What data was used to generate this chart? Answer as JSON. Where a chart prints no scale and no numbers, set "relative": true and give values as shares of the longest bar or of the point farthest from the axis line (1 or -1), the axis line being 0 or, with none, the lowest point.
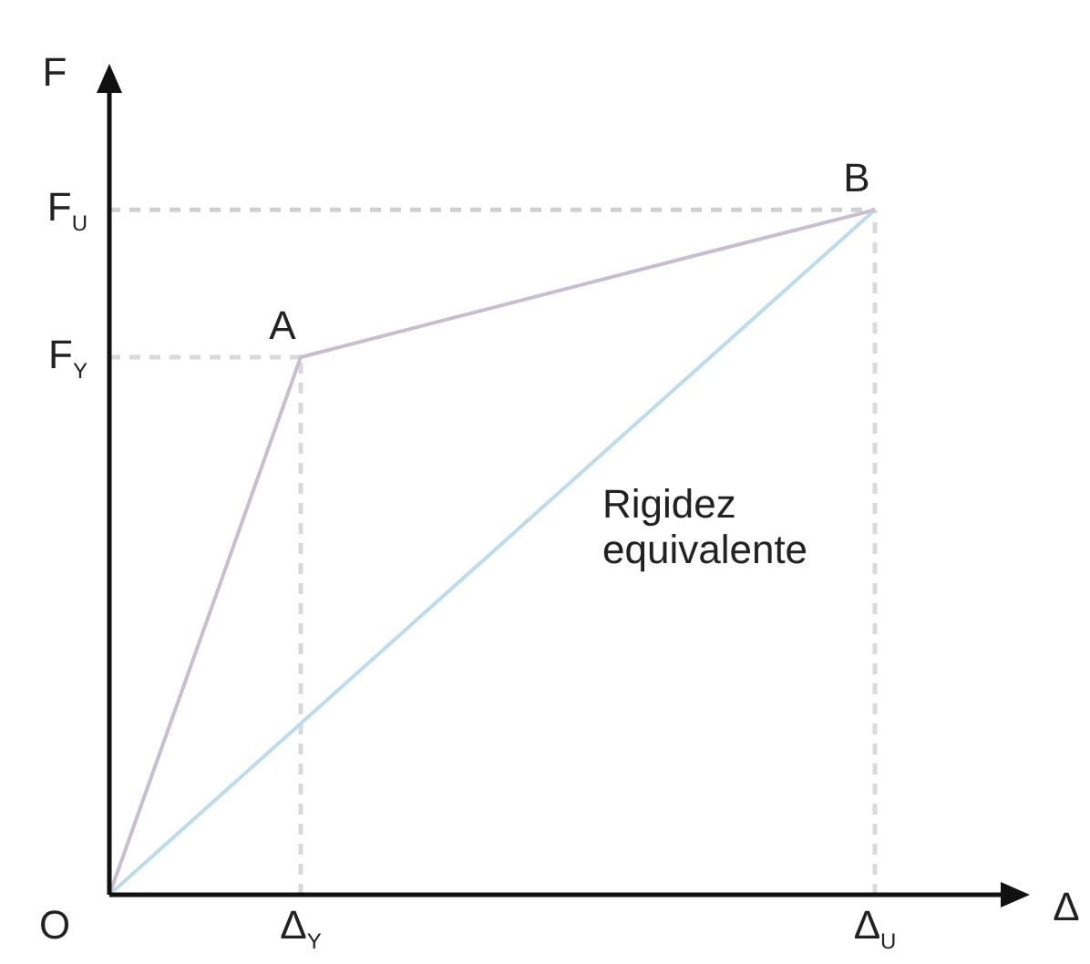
{
  "chart_data": {
    "type": "line",
    "relative": true,
    "xlabel": "Δ",
    "ylabel": "F",
    "categories": [
      null,
      "Δ$_{Y}$",
      null,
      null,
      "Δ$_{U}$"
    ],
    "series": [
      {
        "color": "#c9bdd0",
        "values": [
          0,
          0.785,
          0.857,
          0.929,
          1
        ]
      },
      {
        "name": "Rigidez equivalente",
        "color": "#bcdcec",
        "values": [
          0,
          0.25,
          0.5,
          0.75,
          1
        ]
      }
    ],
    "ref_lines": [
      {
        "axis": "y",
        "value": 0.785,
        "label": "F$_{Y}$",
        "color": "#d9d9d9",
        "line_style": "dashed"
      },
      {
        "axis": "y",
        "value": 1,
        "label": "F$_{U}$",
        "color": "#d0d0d0",
        "line_style": "dashed"
      },
      {
        "axis": "x",
        "value": "Δ$_{Y}$",
        "color": "#d9d9d9",
        "line_style": "dashed"
      },
      {
        "axis": "x",
        "value": "Δ$_{U}$",
        "color": "#d9d9d9",
        "line_style": "dashed"
      }
    ],
    "annotations": [
      "O",
      {
        "text": "A",
        "x": "Δ$_{Y}$",
        "y": 0.785
      },
      {
        "text": "B",
        "x": "Δ$_{U}$",
        "y": 1
      }
    ],
    "marker": "none",
    "legend": false
  }
}
